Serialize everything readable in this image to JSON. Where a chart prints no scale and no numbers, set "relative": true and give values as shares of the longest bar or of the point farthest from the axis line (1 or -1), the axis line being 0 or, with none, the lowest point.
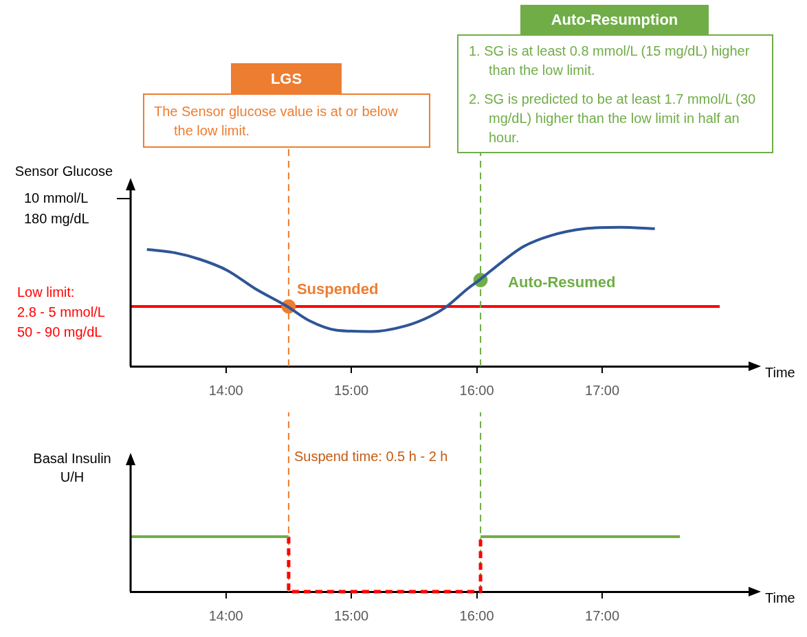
{
  "chart_data": [
    {
      "type": "line",
      "ylabel": "Sensor Glucose",
      "xlabel": "Time",
      "relative": true,
      "xlim": [
        13.24,
        18.2
      ],
      "xticks": [
        {
          "value": 14,
          "label": "14:00"
        },
        {
          "value": 15,
          "label": "15:00"
        },
        {
          "value": 16,
          "label": "16:00"
        },
        {
          "value": 17,
          "label": "17:00"
        }
      ],
      "series": [
        {
          "color": "#2f5597",
          "x": [
            13.37,
            13.57,
            13.79,
            14.01,
            14.23,
            14.49,
            14.66,
            14.88,
            15.16,
            15.43,
            15.63,
            15.76,
            15.93,
            16.02,
            16.2,
            16.37,
            16.59,
            16.86,
            17.14,
            17.42
          ],
          "values": [
            0.84,
            0.82,
            0.77,
            0.69,
            0.56,
            0.43,
            0.33,
            0.26,
            0.25,
            0.29,
            0.36,
            0.43,
            0.56,
            0.62,
            0.75,
            0.86,
            0.94,
            0.99,
            1,
            0.99
          ]
        },
        {
          "type": "scatter",
          "name": "Suspended",
          "color": "#ed7d31",
          "x": [
            14.5
          ],
          "values": [
            0.43
          ]
        },
        {
          "type": "scatter",
          "name": "Auto-Resumed",
          "color": "#70ad47",
          "x": [
            16.03
          ],
          "values": [
            0.62
          ]
        }
      ],
      "ref_lines": [
        {
          "axis": "y",
          "value": 0.43,
          "color": "#ff0000"
        },
        {
          "axis": "x",
          "value": 14.5,
          "color": "#ed7d31",
          "line_style": "dashed"
        },
        {
          "axis": "x",
          "value": 16.03,
          "color": "#70ad47",
          "line_style": "dashed"
        }
      ],
      "annotations": [
        "LGS",
        "The Sensor glucose value is at or below the low limit.",
        "Auto-Resumption",
        "1. SG is at least 0.8 mmol/L (15 mg/dL) higher than the low limit.",
        "2. SG is predicted to be at least 1.7 mmol/L (30 mg/dL) higher than the low limit in half an hour.",
        "10 mmol/L\n180 mg/dL",
        "Low limit:\n2.8 - 5 mmol/L\n50 - 90 mg/dL"
      ]
    },
    {
      "type": "line",
      "ylabel": "Basal Insulin\nU/H",
      "xlabel": "Time",
      "relative": true,
      "xlim": [
        13.24,
        18.2
      ],
      "xticks": [
        {
          "value": 14,
          "label": "14:00"
        },
        {
          "value": 15,
          "label": "15:00"
        },
        {
          "value": 16,
          "label": "16:00"
        },
        {
          "value": 17,
          "label": "17:00"
        }
      ],
      "series": [
        {
          "color": "#70ad47",
          "x": [
            13.24,
            14.5
          ],
          "values": [
            1,
            1
          ]
        },
        {
          "color": "#ff0000",
          "line_style": "dashed",
          "x": [
            14.5,
            14.5,
            16.03,
            16.03
          ],
          "values": [
            1,
            0,
            0,
            1
          ]
        },
        {
          "color": "#70ad47",
          "x": [
            16.03,
            17.62
          ],
          "values": [
            1,
            1
          ]
        }
      ],
      "ref_lines": [
        {
          "axis": "x",
          "value": 14.5,
          "color": "#ed7d31",
          "line_style": "dashed"
        },
        {
          "axis": "x",
          "value": 16.03,
          "color": "#70ad47",
          "line_style": "dashed"
        }
      ],
      "annotations": [
        "Suspend time: 0.5 h - 2 h"
      ]
    }
  ]
}
